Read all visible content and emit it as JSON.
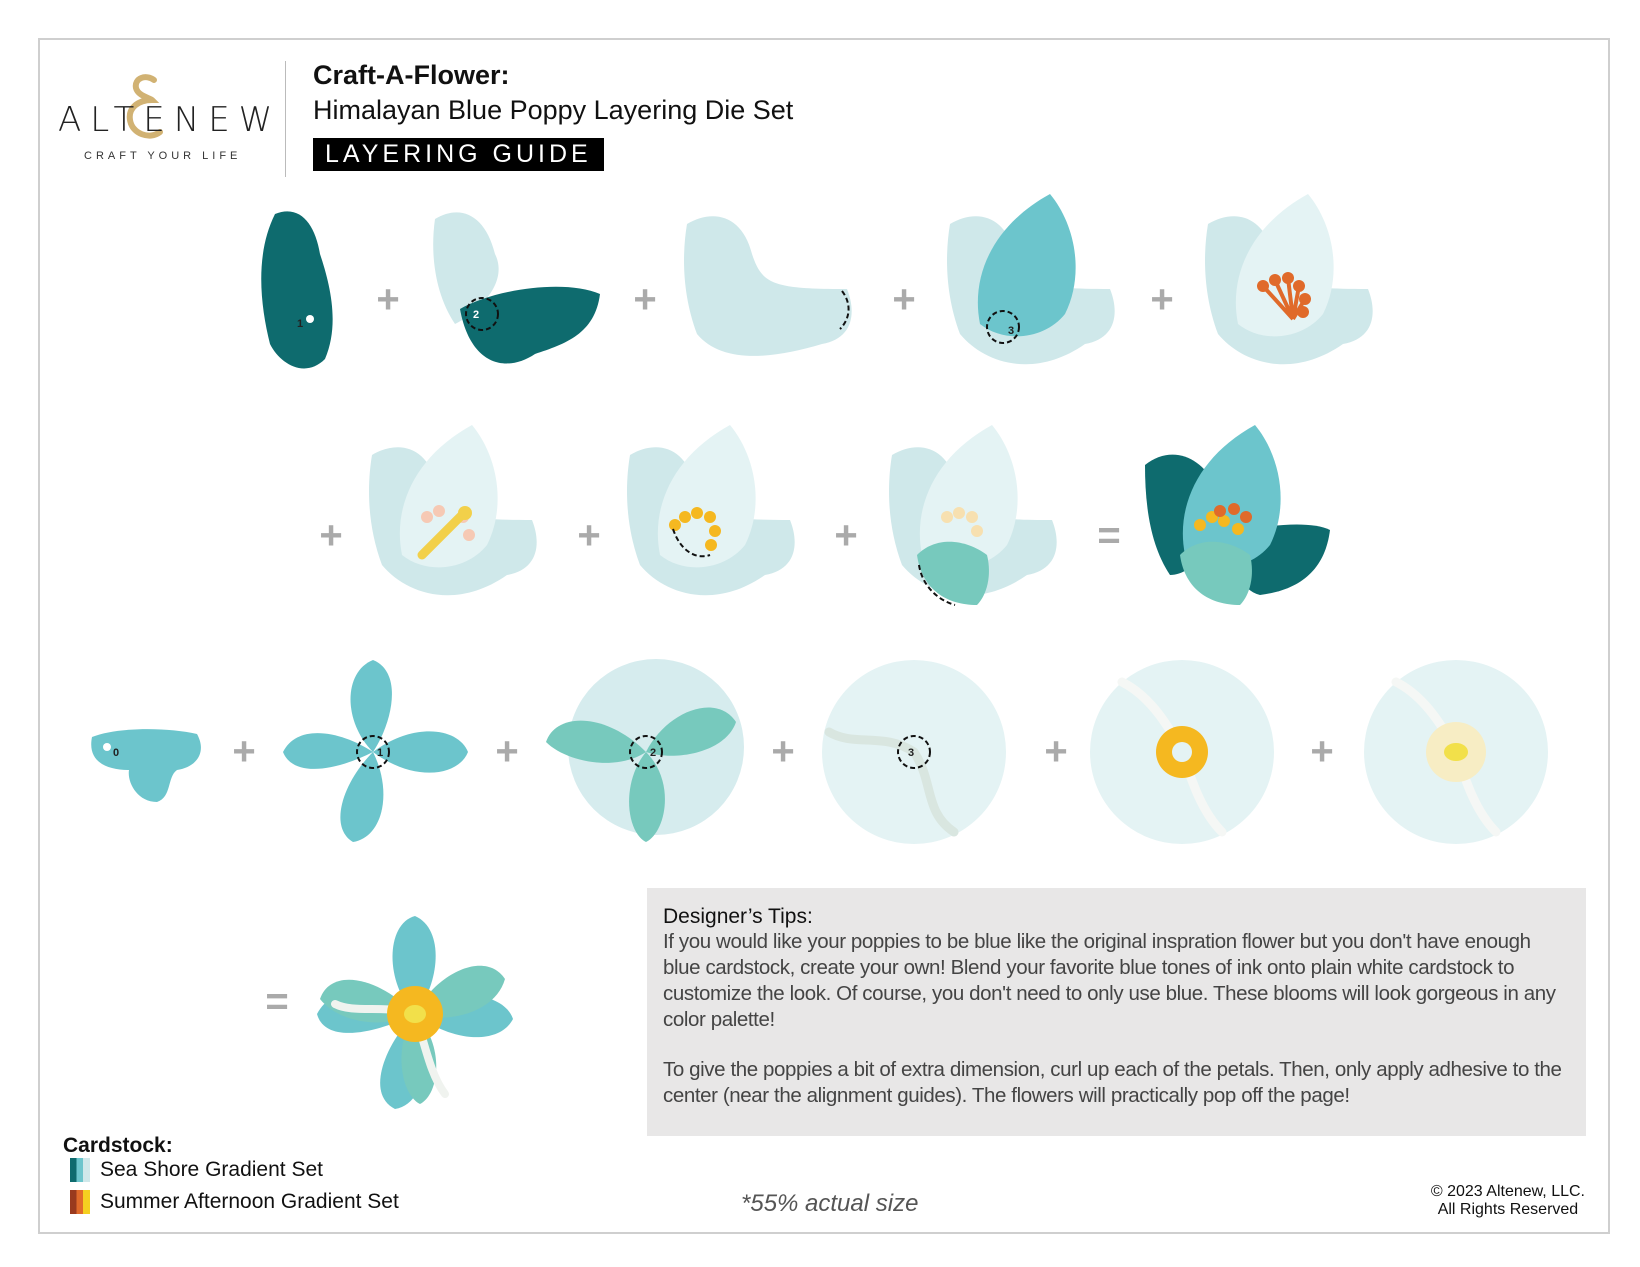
{
  "header": {
    "brand": "ALTENEW",
    "tagline": "CRAFT YOUR LIFE",
    "title": "Craft-A-Flower:",
    "subtitle": "Himalayan Blue Poppy Layering Die Set",
    "badge": "LAYERING GUIDE"
  },
  "operators": {
    "plus": "+",
    "equals": "="
  },
  "step_numbers": {
    "r1s1": "1",
    "r1s2": "2",
    "r1s4": "3",
    "r3s1": "0",
    "r3s2": "1",
    "r3s3": "2",
    "r3s4": "3"
  },
  "colors": {
    "dark_teal": "#0e6b6e",
    "teal": "#6cc5cc",
    "light": "#cfe8ea",
    "pale": "#e4f3f4",
    "sea_green": "#77c9bd",
    "orange": "#e06a2a",
    "yellow": "#f5b820",
    "cream": "#f7edc4"
  },
  "tips": {
    "heading": "Designer’s Tips:",
    "paragraph1": "If you would like your poppies to be blue like the original inspration flower but you don't have enough blue cardstock, create your own! Blend your favorite blue tones of ink onto plain white cardstock to customize the look. Of course, you don't need to only use blue. These blooms will look gorgeous in any color palette!",
    "paragraph2": "To give the poppies a bit of extra dimension, curl up each of the petals. Then, only apply adhesive to the center (near the alignment guides). The flowers will practically pop off the page!"
  },
  "cardstock": {
    "heading": "Cardstock:",
    "items": [
      "Sea Shore Gradient Set",
      "Summer Afternoon Gradient Set"
    ]
  },
  "footer": {
    "scale_note": "*55% actual size",
    "copyright": "© 2023 Altenew, LLC.",
    "rights": "All Rights Reserved"
  }
}
